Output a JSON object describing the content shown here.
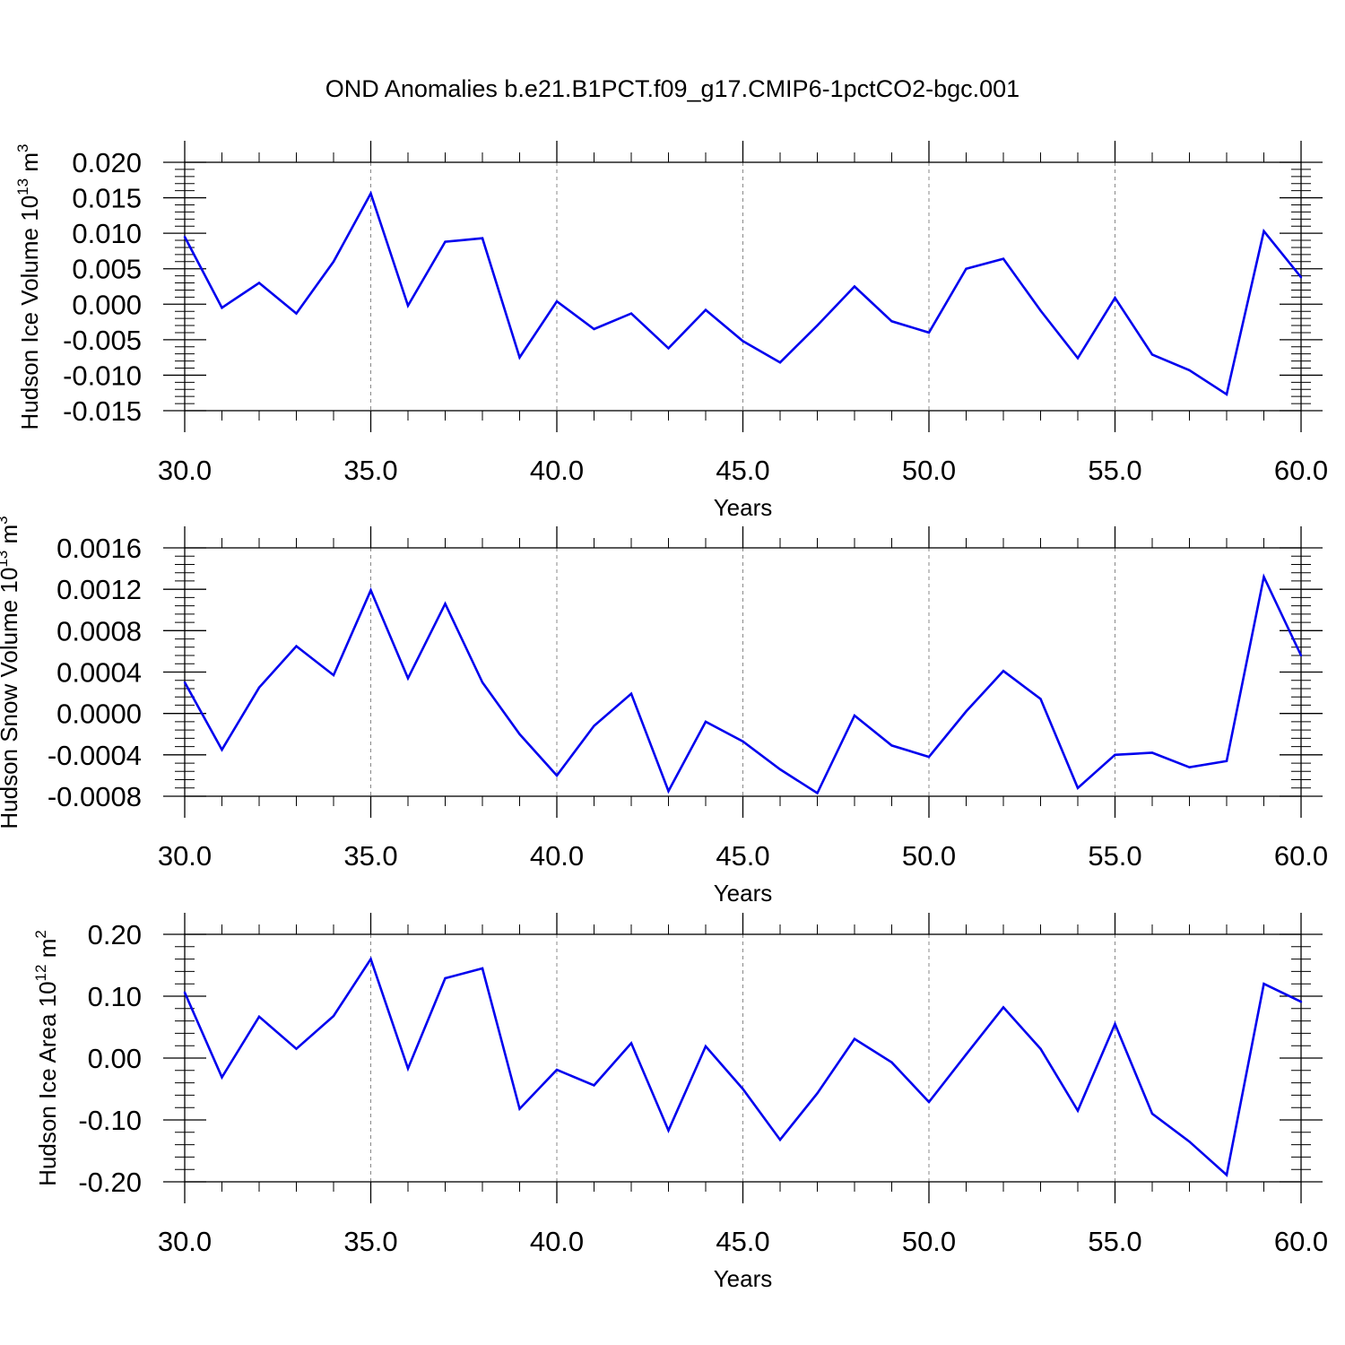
{
  "title": "OND Anomalies b.e21.B1PCT.f09_g17.CMIP6-1pctCO2-bgc.001",
  "colors": {
    "line": "#0000ee",
    "axis": "#000000",
    "grid": "#888888"
  },
  "chart_data": [
    {
      "type": "line",
      "xlabel": "Years",
      "ylabel": "Hudson Ice Volume 10",
      "ylabel_exp": "13",
      "ylabel_unit": " m",
      "ylabel_unit_exp": "3",
      "xlim": [
        30,
        60
      ],
      "ylim": [
        -0.015,
        0.02
      ],
      "xticks": [
        30,
        35,
        40,
        45,
        50,
        55,
        60
      ],
      "xtick_labels": [
        "30.0",
        "35.0",
        "40.0",
        "45.0",
        "50.0",
        "55.0",
        "60.0"
      ],
      "yticks": [
        -0.015,
        -0.01,
        -0.005,
        0,
        0.005,
        0.01,
        0.015,
        0.02
      ],
      "ytick_labels": [
        "-0.015",
        "-0.010",
        "-0.005",
        "0.000",
        "0.005",
        "0.010",
        "0.015",
        "0.020"
      ],
      "grid": "vertical dashed at major x ticks",
      "x": [
        30,
        31,
        32,
        33,
        34,
        35,
        36,
        37,
        38,
        39,
        40,
        41,
        42,
        43,
        44,
        45,
        46,
        47,
        48,
        49,
        50,
        51,
        52,
        53,
        54,
        55,
        56,
        57,
        58,
        59,
        60
      ],
      "values": [
        0.0095,
        -0.0005,
        0.003,
        -0.0013,
        0.006,
        0.0156,
        -0.0002,
        0.0088,
        0.0093,
        -0.0075,
        0.0004,
        -0.0035,
        -0.0013,
        -0.0062,
        -0.0008,
        -0.0052,
        -0.0082,
        -0.003,
        0.0025,
        -0.0024,
        -0.004,
        0.005,
        0.0064,
        -0.0009,
        -0.0076,
        0.0009,
        -0.0071,
        -0.0093,
        -0.0127,
        0.0103,
        0.0038
      ]
    },
    {
      "type": "line",
      "xlabel": "Years",
      "ylabel": "Hudson Snow Volume 10",
      "ylabel_exp": "13",
      "ylabel_unit": " m",
      "ylabel_unit_exp": "3",
      "xlim": [
        30,
        60
      ],
      "ylim": [
        -0.0008,
        0.0016
      ],
      "xticks": [
        30,
        35,
        40,
        45,
        50,
        55,
        60
      ],
      "xtick_labels": [
        "30.0",
        "35.0",
        "40.0",
        "45.0",
        "50.0",
        "55.0",
        "60.0"
      ],
      "yticks": [
        -0.0008,
        -0.0004,
        0,
        0.0004,
        0.0008,
        0.0012,
        0.0016
      ],
      "ytick_labels": [
        "-0.0008",
        "-0.0004",
        "0.0000",
        "0.0004",
        "0.0008",
        "0.0012",
        "0.0016"
      ],
      "grid": "vertical dashed at major x ticks",
      "x": [
        30,
        31,
        32,
        33,
        34,
        35,
        36,
        37,
        38,
        39,
        40,
        41,
        42,
        43,
        44,
        45,
        46,
        47,
        48,
        49,
        50,
        51,
        52,
        53,
        54,
        55,
        56,
        57,
        58,
        59,
        60
      ],
      "values": [
        0.0003,
        -0.00035,
        0.00025,
        0.00065,
        0.00037,
        0.00119,
        0.00034,
        0.00106,
        0.0003,
        -0.0002,
        -0.0006,
        -0.00012,
        0.00019,
        -0.00075,
        -8e-05,
        -0.00027,
        -0.00054,
        -0.00077,
        -2e-05,
        -0.00031,
        -0.00042,
        2e-05,
        0.00041,
        0.00014,
        -0.00072,
        -0.0004,
        -0.00038,
        -0.00052,
        -0.00046,
        0.00132,
        0.00056
      ]
    },
    {
      "type": "line",
      "xlabel": "Years",
      "ylabel": "Hudson Ice Area 10",
      "ylabel_exp": "12",
      "ylabel_unit": " m",
      "ylabel_unit_exp": "2",
      "xlim": [
        30,
        60
      ],
      "ylim": [
        -0.2,
        0.2
      ],
      "xticks": [
        30,
        35,
        40,
        45,
        50,
        55,
        60
      ],
      "xtick_labels": [
        "30.0",
        "35.0",
        "40.0",
        "45.0",
        "50.0",
        "55.0",
        "60.0"
      ],
      "yticks": [
        -0.2,
        -0.1,
        0,
        0.1,
        0.2
      ],
      "ytick_labels": [
        "-0.20",
        "-0.10",
        "0.00",
        "0.10",
        "0.20"
      ],
      "grid": "vertical dashed at major x ticks",
      "x": [
        30,
        31,
        32,
        33,
        34,
        35,
        36,
        37,
        38,
        39,
        40,
        41,
        42,
        43,
        44,
        45,
        46,
        47,
        48,
        49,
        50,
        51,
        52,
        53,
        54,
        55,
        56,
        57,
        58,
        59,
        60
      ],
      "values": [
        0.106,
        -0.031,
        0.067,
        0.015,
        0.068,
        0.16,
        -0.017,
        0.129,
        0.145,
        -0.082,
        -0.019,
        -0.044,
        0.024,
        -0.117,
        0.019,
        -0.05,
        -0.132,
        -0.057,
        0.031,
        -0.007,
        -0.071,
        0.006,
        0.082,
        0.015,
        -0.085,
        0.055,
        -0.09,
        -0.135,
        -0.189,
        0.12,
        0.091
      ]
    }
  ]
}
